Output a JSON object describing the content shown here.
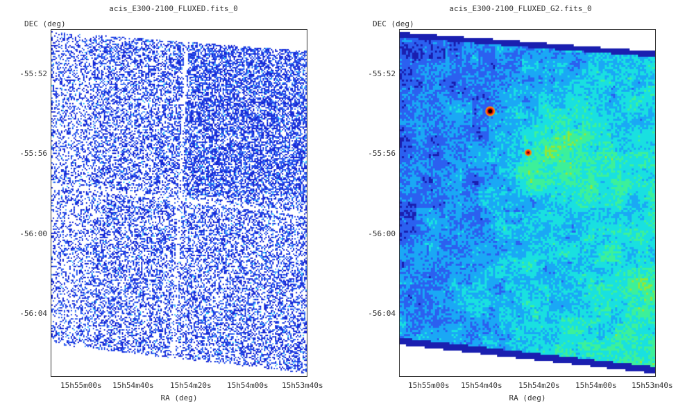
{
  "left": {
    "title": "acis_E300-2100_FLUXED.fits_0",
    "y_axis_title": "DEC (deg)",
    "x_axis_title": "RA (deg)",
    "y_ticks": [
      "-55:52",
      "-55:56",
      "-56:00",
      "-56:04"
    ],
    "x_ticks": [
      "15h55m00s",
      "15h54m40s",
      "15h54m20s",
      "15h54m00s",
      "15h53m40s"
    ],
    "colormap": [
      "#ffffff",
      "#1a2bd6",
      "#2f5cf0",
      "#5aa8ff",
      "#39d0ff"
    ]
  },
  "right": {
    "title": "acis_E300-2100_FLUXED_G2.fits_0",
    "y_axis_title": "DEC (deg)",
    "x_axis_title": "RA (deg)",
    "y_ticks": [
      "-55:52",
      "-55:56",
      "-56:00",
      "-56:04"
    ],
    "x_ticks": [
      "15h55m00s",
      "15h54m40s",
      "15h54m20s",
      "15h54m00s",
      "15h53m40s"
    ],
    "colormap": [
      "#1a1fb0",
      "#2b60f0",
      "#1aa8f5",
      "#19e0e0",
      "#3cf09a",
      "#8fe83a",
      "#e8f020",
      "#ff8a00",
      "#e01010",
      "#000000"
    ]
  }
}
